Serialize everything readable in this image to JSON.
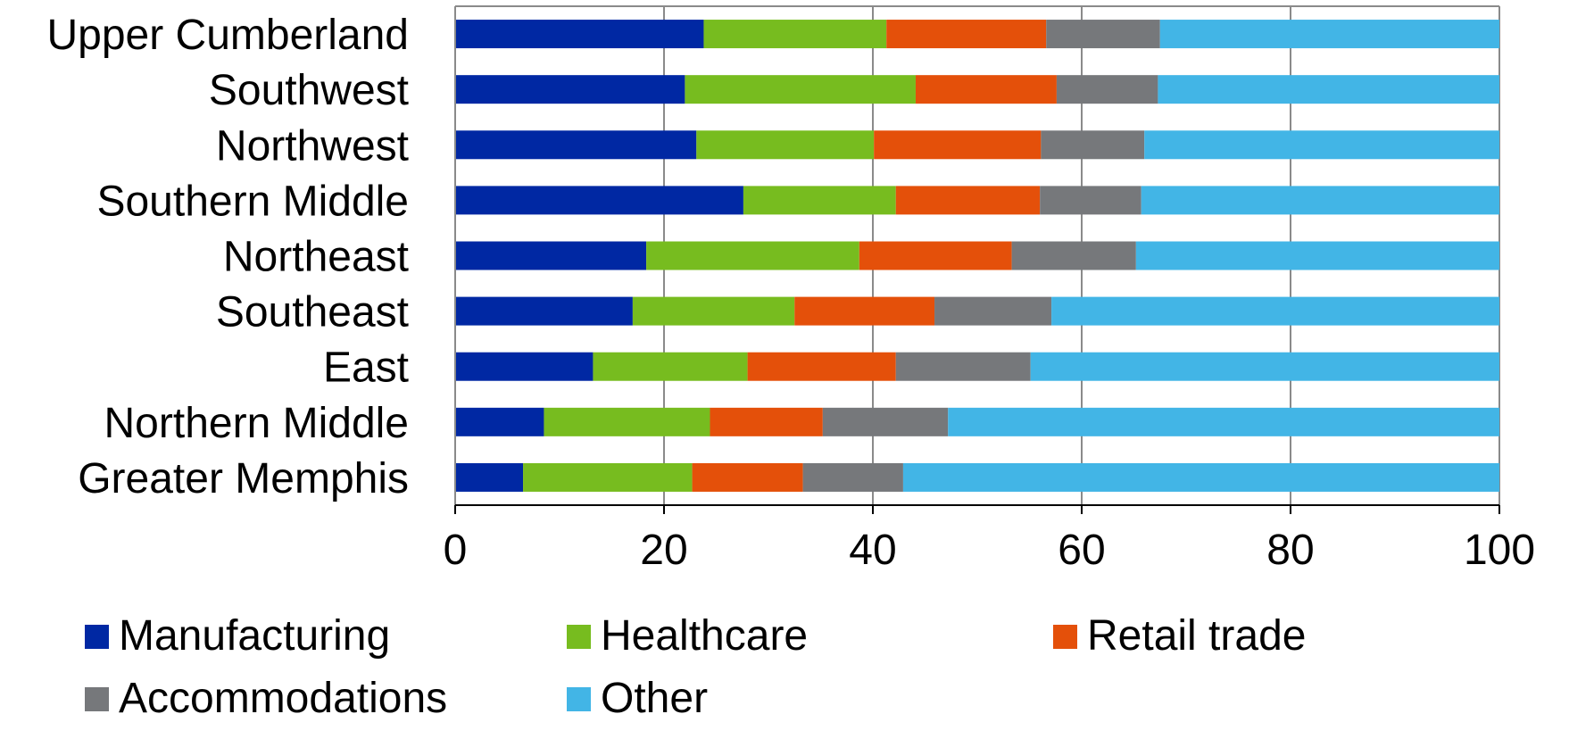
{
  "chart_data": {
    "type": "bar",
    "orientation": "horizontal",
    "stacked": true,
    "categories": [
      "Upper Cumberland",
      "Southwest",
      "Northwest",
      "Southern Middle",
      "Northeast",
      "Southeast",
      "East",
      "Northern Middle",
      "Greater Memphis"
    ],
    "series": [
      {
        "name": "Manufacturing",
        "color": "#0028A3",
        "values": [
          23.8,
          22.0,
          23.1,
          27.6,
          18.3,
          17.0,
          13.2,
          8.5,
          6.5
        ]
      },
      {
        "name": "Healthcare",
        "color": "#77BC1F",
        "values": [
          17.5,
          22.1,
          17.0,
          14.6,
          20.4,
          15.5,
          14.8,
          15.9,
          16.2
        ]
      },
      {
        "name": "Retail trade",
        "color": "#E4500A",
        "values": [
          15.3,
          13.5,
          16.0,
          13.8,
          14.6,
          13.4,
          14.2,
          10.8,
          10.6
        ]
      },
      {
        "name": "Accommodations",
        "color": "#76787B",
        "values": [
          10.9,
          9.7,
          9.9,
          9.7,
          11.9,
          11.2,
          12.9,
          12.0,
          9.6
        ]
      },
      {
        "name": "Other",
        "color": "#42B5E6",
        "values": [
          32.5,
          32.7,
          34.0,
          34.3,
          34.8,
          42.9,
          44.9,
          52.8,
          57.1
        ]
      }
    ],
    "xlim": [
      0,
      100
    ],
    "xticks": [
      "0",
      "20",
      "40",
      "60",
      "80",
      "100"
    ],
    "grid": true,
    "legend_position": "bottom"
  }
}
